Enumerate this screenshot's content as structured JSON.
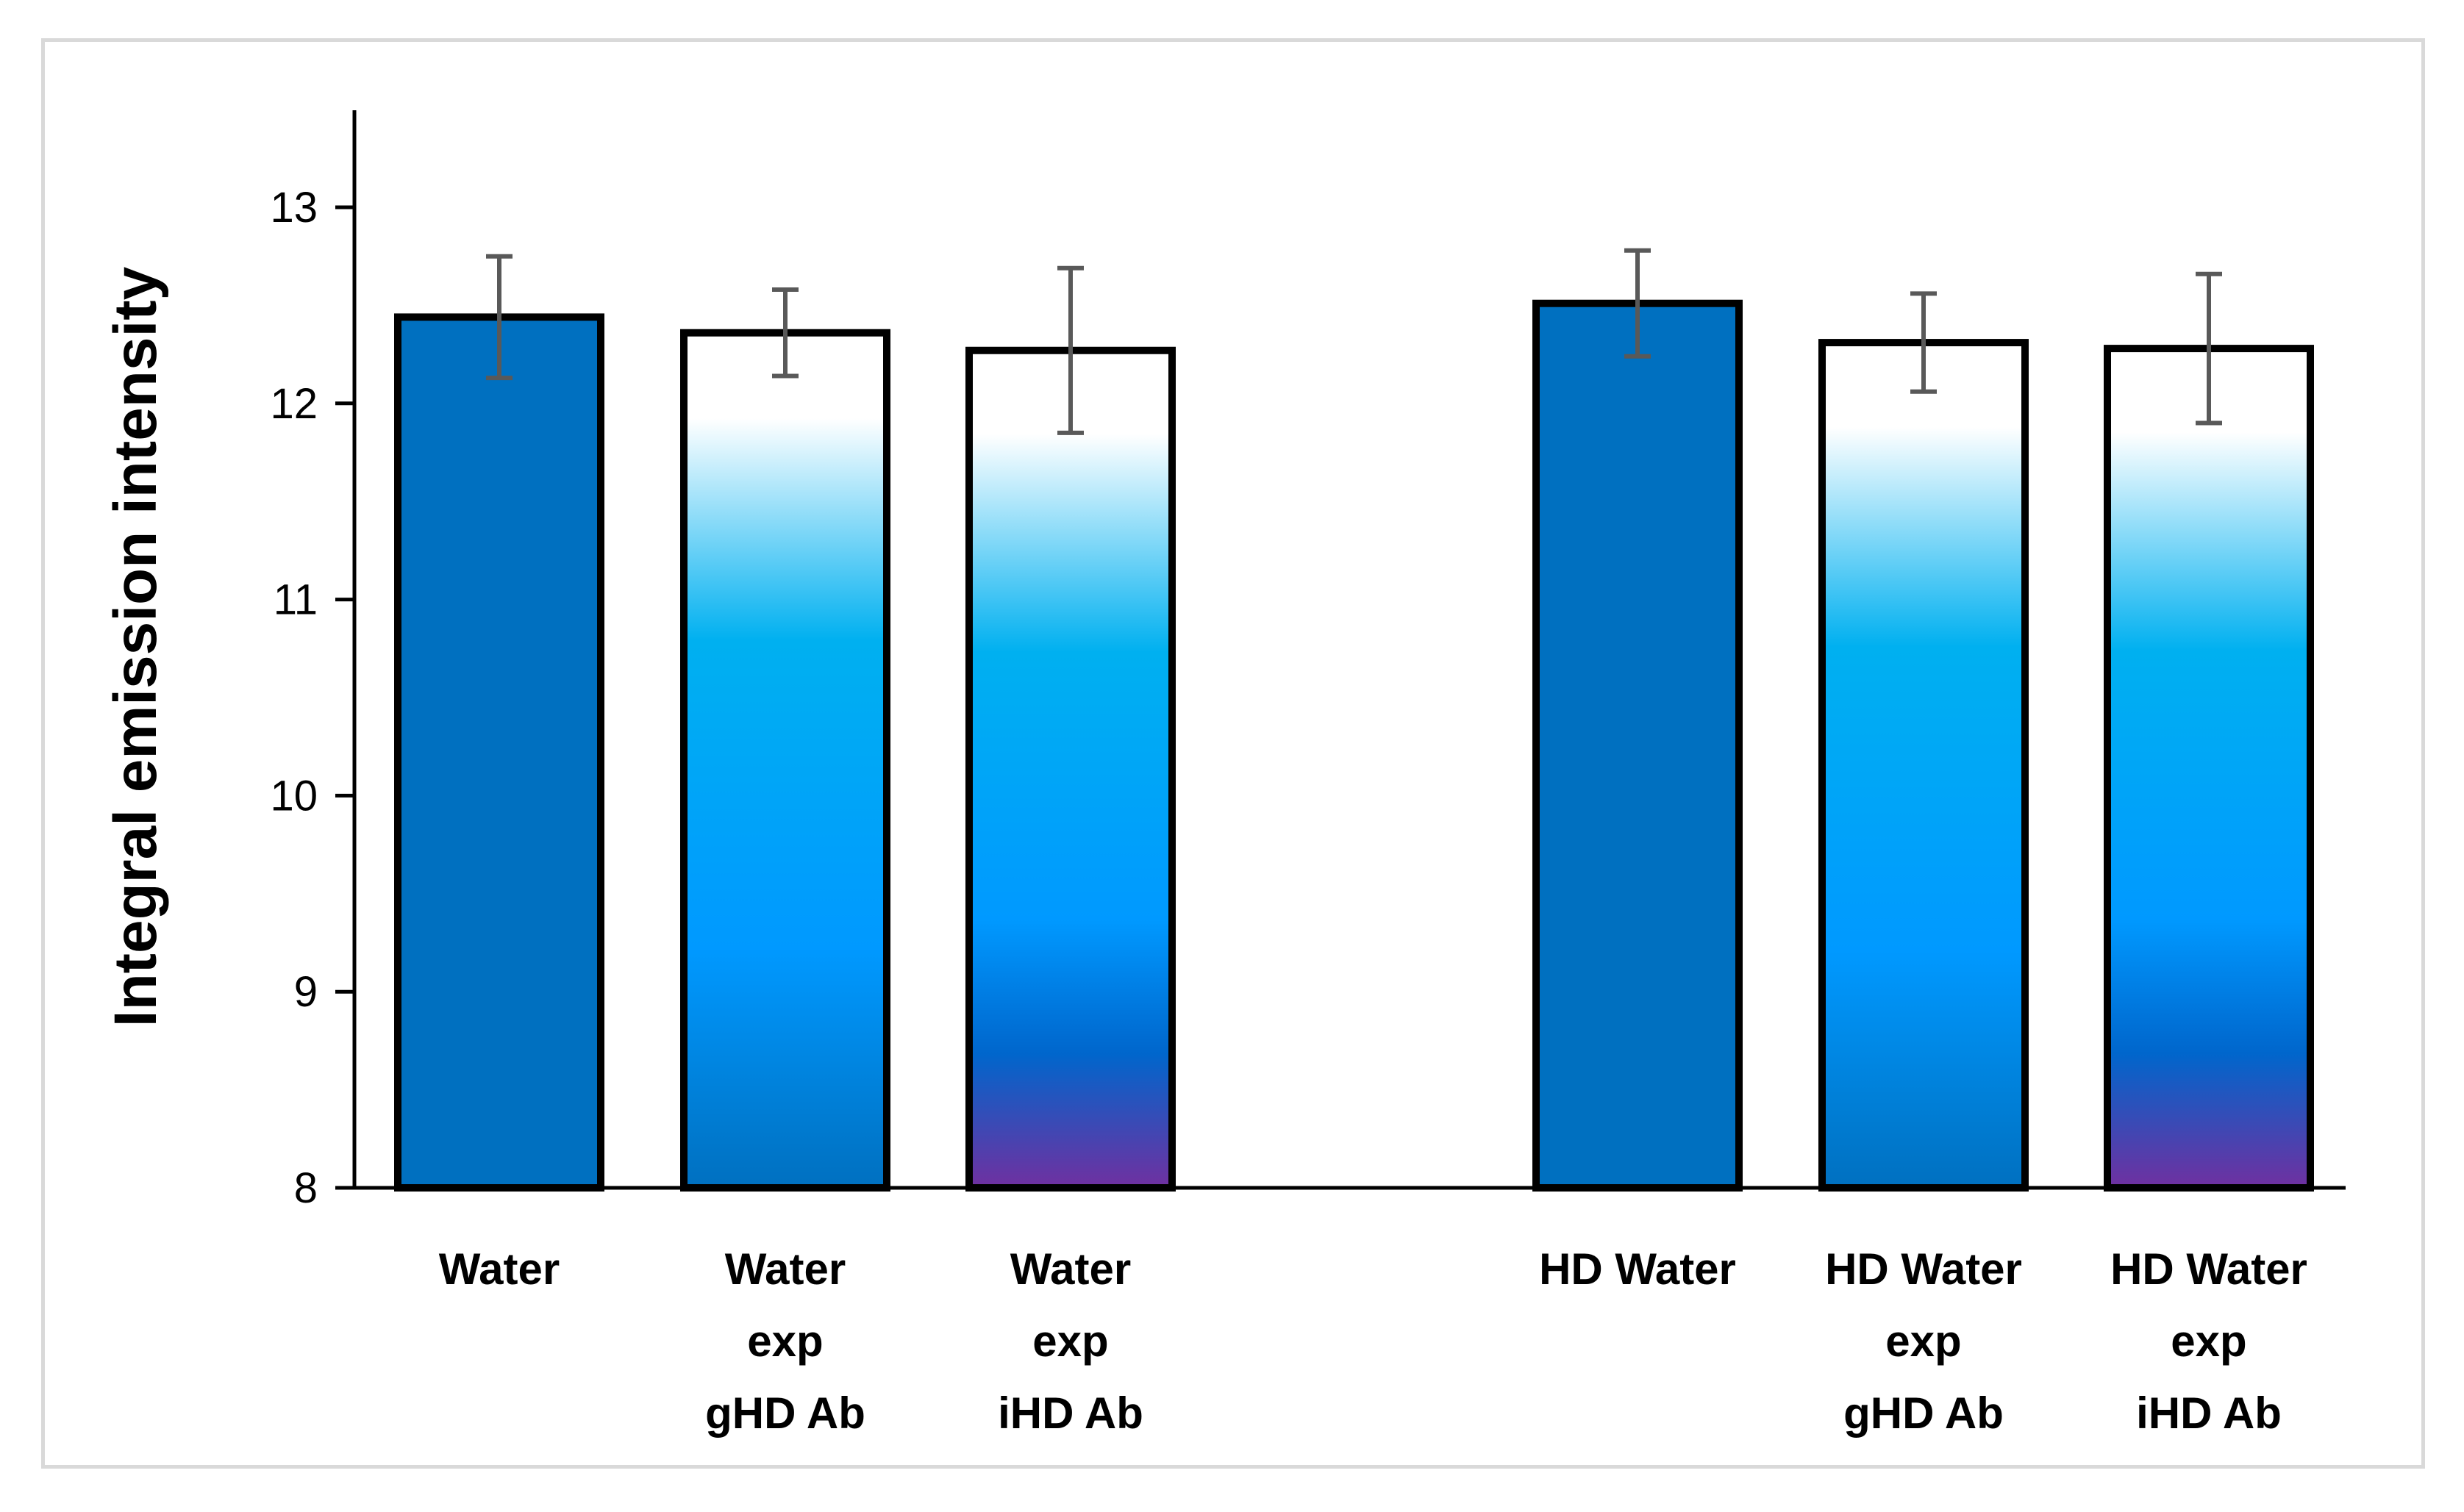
{
  "chart_data": {
    "type": "bar",
    "title": "",
    "xlabel": "",
    "ylabel": "Integral emission intensity",
    "ylim": [
      8,
      13.5
    ],
    "yticks": [
      "8",
      "9",
      "10",
      "11",
      "12",
      "13"
    ],
    "grid": false,
    "legend": "none",
    "categories": [
      [
        "Water"
      ],
      [
        "Water",
        "exp",
        "gHD Ab"
      ],
      [
        "Water",
        "exp",
        "iHD Ab"
      ],
      [
        "HD Water"
      ],
      [
        "HD Water",
        "exp",
        "gHD Ab"
      ],
      [
        "HD Water",
        "exp",
        "iHD Ab"
      ]
    ],
    "values": [
      12.44,
      12.36,
      12.27,
      12.51,
      12.31,
      12.28
    ],
    "errors": [
      0.31,
      0.22,
      0.42,
      0.27,
      0.25,
      0.38
    ],
    "fill_styles": [
      "solid",
      "gradient",
      "gradient-violet",
      "solid",
      "gradient",
      "gradient-violet"
    ]
  },
  "colors": {
    "solid_bar": "#0070c0",
    "bar_border": "#000000",
    "error_bar": "#595959",
    "frame": "#d9d9d9",
    "axis": "#000000",
    "gradient_white": "#ffffff",
    "gradient_light": "#00b0f0",
    "gradient_mid": "#0099ff",
    "gradient_deep": "#0070c0",
    "gradient_violet": "#7030a0"
  }
}
